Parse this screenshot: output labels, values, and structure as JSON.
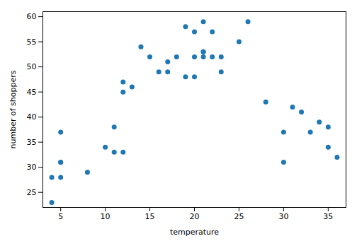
{
  "chart_data": {
    "type": "scatter",
    "x": [
      4,
      4,
      5,
      5,
      5,
      5,
      8,
      10,
      11,
      11,
      12,
      12,
      12,
      13,
      14,
      15,
      16,
      17,
      17,
      18,
      19,
      19,
      20,
      20,
      20,
      21,
      21,
      21,
      21,
      22,
      22,
      23,
      23,
      25,
      26,
      28,
      30,
      30,
      31,
      32,
      33,
      34,
      35,
      35,
      36
    ],
    "values": [
      23,
      28,
      28,
      31,
      31,
      37,
      29,
      34,
      38,
      33,
      33,
      45,
      47,
      46,
      54,
      52,
      49,
      51,
      49,
      52,
      58,
      48,
      57,
      52,
      48,
      59,
      53,
      52,
      53,
      57,
      52,
      49,
      52,
      55,
      59,
      43,
      37,
      31,
      42,
      41,
      37,
      39,
      34,
      38,
      32
    ],
    "xlabel": "temperature",
    "ylabel": "number of shoppers",
    "xlim": [
      3,
      37
    ],
    "ylim": [
      22,
      61
    ],
    "xticks": [
      5,
      10,
      15,
      20,
      25,
      30,
      35
    ],
    "yticks": [
      25,
      30,
      35,
      40,
      45,
      50,
      55,
      60
    ],
    "color": "#1f77b4"
  }
}
